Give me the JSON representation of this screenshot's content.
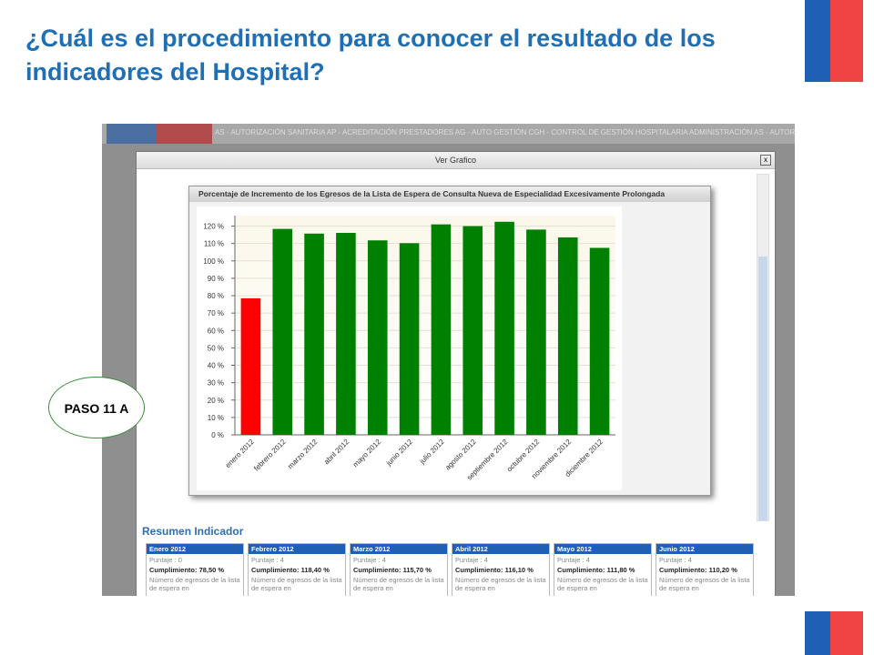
{
  "slide_title": "¿Cuál es el procedimiento para  conocer el resultado de los indicadores del Hospital?",
  "step_label": "PASO 11 A",
  "nav_text": "AS - AUTORIZACIÓN SANITARIA AP - ACREDITACIÓN PRESTADORES AG - AUTO GESTIÓN CGH - CONTROL DE GESTIÓN HOSPITALARIA ADMINISTRACIÓN AS - AUTORIZACIÓN SANITARIA",
  "modal_title": "Ver Grafico",
  "close_label": "x",
  "chart_data": {
    "type": "bar",
    "title": "Porcentaje de Incremento de los Egresos de la Lista de Espera de Consulta Nueva de Especialidad Excesivamente Prolongada",
    "categories": [
      "enero 2012",
      "febrero 2012",
      "marzo 2012",
      "abril 2012",
      "mayo 2012",
      "junio 2012",
      "julio 2012",
      "agosto 2012",
      "septiembre 2012",
      "octubre 2012",
      "noviembre 2012",
      "diciembre 2012"
    ],
    "values": [
      78.5,
      118.4,
      115.7,
      116.1,
      111.8,
      110.2,
      121,
      120,
      122.5,
      118,
      113.5,
      107.5
    ],
    "colors": [
      "#ff0000",
      "#008000",
      "#008000",
      "#008000",
      "#008000",
      "#008000",
      "#008000",
      "#008000",
      "#008000",
      "#008000",
      "#008000",
      "#008000"
    ],
    "ylim": [
      0,
      125
    ],
    "yticks": [
      {
        "value": 0,
        "label": "0 %"
      },
      {
        "value": 10,
        "label": "10 %"
      },
      {
        "value": 20,
        "label": "20 %"
      },
      {
        "value": 30,
        "label": "30 %"
      },
      {
        "value": 40,
        "label": "40 %"
      },
      {
        "value": 50,
        "label": "50 %"
      },
      {
        "value": 60,
        "label": "60 %"
      },
      {
        "value": 70,
        "label": "70 %"
      },
      {
        "value": 80,
        "label": "80 %"
      },
      {
        "value": 90,
        "label": "90 %"
      },
      {
        "value": 100,
        "label": "100 %"
      },
      {
        "value": 110,
        "label": "110 %"
      },
      {
        "value": 120,
        "label": "120 %"
      }
    ],
    "grid": true
  },
  "summary": {
    "title": "Resumen Indicador",
    "cards": [
      {
        "month": "Enero 2012",
        "score": "Puntaje : 0",
        "compliance": "Cumplimiento: 78,50 %",
        "note": "Número de egresos de la lista de espera en"
      },
      {
        "month": "Febrero 2012",
        "score": "Puntaje : 4",
        "compliance": "Cumplimiento: 118,40 %",
        "note": "Número de egresos de la lista de espera en"
      },
      {
        "month": "Marzo 2012",
        "score": "Puntaje : 4",
        "compliance": "Cumplimiento: 115,70 %",
        "note": "Número de egresos de la lista de espera en"
      },
      {
        "month": "Abril 2012",
        "score": "Puntaje : 4",
        "compliance": "Cumplimiento: 116,10 %",
        "note": "Número de egresos de la lista de espera en"
      },
      {
        "month": "Mayo 2012",
        "score": "Puntaje : 4",
        "compliance": "Cumplimiento: 111,80 %",
        "note": "Número de egresos de la lista de espera en"
      },
      {
        "month": "Junio 2012",
        "score": "Puntaje : 4",
        "compliance": "Cumplimiento: 110,20 %",
        "note": "Número de egresos de la lista de espera en"
      }
    ]
  }
}
